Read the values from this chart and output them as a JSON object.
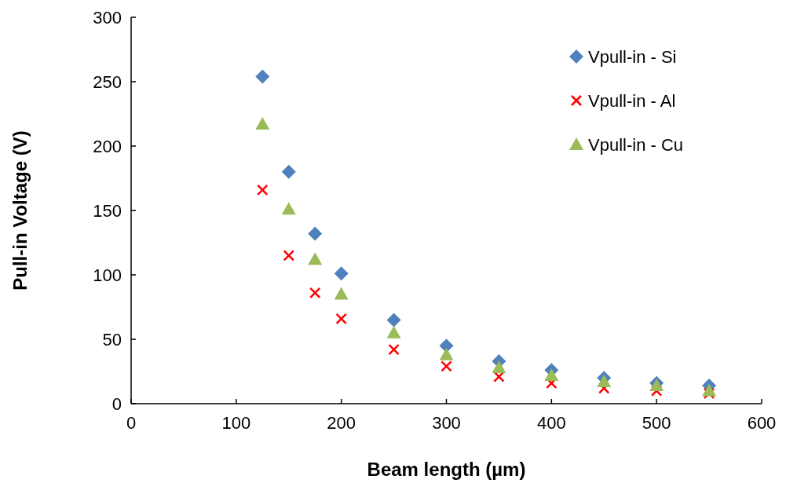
{
  "chart_data": {
    "type": "scatter",
    "xlabel": "Beam length (µm)",
    "ylabel": "Pull-in Voltage (V)",
    "x": [
      125,
      150,
      175,
      200,
      250,
      300,
      350,
      400,
      450,
      500,
      550
    ],
    "xlim": [
      0,
      600
    ],
    "xticks": [
      0,
      100,
      200,
      300,
      400,
      500,
      600
    ],
    "ylim": [
      0,
      300
    ],
    "yticks": [
      0,
      50,
      100,
      150,
      200,
      250,
      300
    ],
    "grid": false,
    "legend": "top right",
    "series": [
      {
        "name": "Vpull-in - Si",
        "color": "#4f81bd",
        "marker": "diamond",
        "values": [
          254,
          180,
          132,
          101,
          65,
          45,
          33,
          26,
          20,
          16,
          14
        ]
      },
      {
        "name": "Vpull-in - Al",
        "color": "#ff0000",
        "marker": "cross",
        "values": [
          166,
          115,
          86,
          66,
          42,
          29,
          21,
          16,
          12,
          10,
          8
        ]
      },
      {
        "name": "Vpull-in - Cu",
        "color": "#9bbb59",
        "marker": "triangle",
        "values": [
          217,
          151,
          112,
          85,
          55,
          38,
          28,
          22,
          17,
          14,
          10
        ]
      }
    ]
  }
}
